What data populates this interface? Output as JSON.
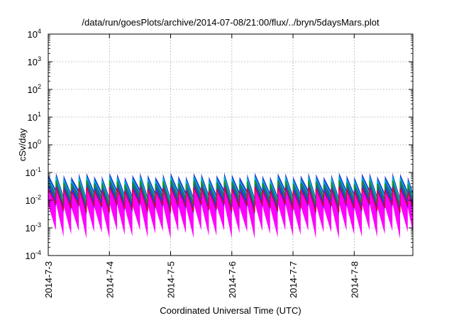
{
  "chart_data": {
    "type": "area",
    "title": "/data/run/goesPlots/archive/2014-07-08/21:00/flux/../bryn/5daysMars.plot",
    "xlabel": "Coordinated Universal Time (UTC)",
    "ylabel": "cSv/day",
    "y_scale": "log",
    "grid": true,
    "ylim": [
      0.0001,
      10000
    ],
    "xlim": [
      "2014-07-03 00:00",
      "2014-07-08 23:00"
    ],
    "y_ticks": [
      {
        "base": "10",
        "exp": "4",
        "value": 10000
      },
      {
        "base": "10",
        "exp": "3",
        "value": 1000
      },
      {
        "base": "10",
        "exp": "2",
        "value": 100
      },
      {
        "base": "10",
        "exp": "1",
        "value": 10
      },
      {
        "base": "10",
        "exp": "0",
        "value": 1
      },
      {
        "base": "10",
        "exp": "-1",
        "value": 0.1
      },
      {
        "base": "10",
        "exp": "-2",
        "value": 0.01
      },
      {
        "base": "10",
        "exp": "-3",
        "value": 0.001
      },
      {
        "base": "10",
        "exp": "-4",
        "value": 0.0001
      }
    ],
    "x_ticks": [
      "2014-7-3",
      "2014-7-4",
      "2014-7-5",
      "2014-7-6",
      "2014-7-7",
      "2014-7-8"
    ],
    "pattern": {
      "period_hours": 3,
      "peak_range": [
        0.07,
        0.1
      ],
      "trough_range": [
        0.0004,
        0.0008
      ]
    },
    "colors": {
      "band_outer": "#ff00ff",
      "band_mid": "#1f3fdd",
      "line_inner": "#00c8c8",
      "line_core": "#1fa000",
      "line_red": "#e0001a"
    }
  }
}
